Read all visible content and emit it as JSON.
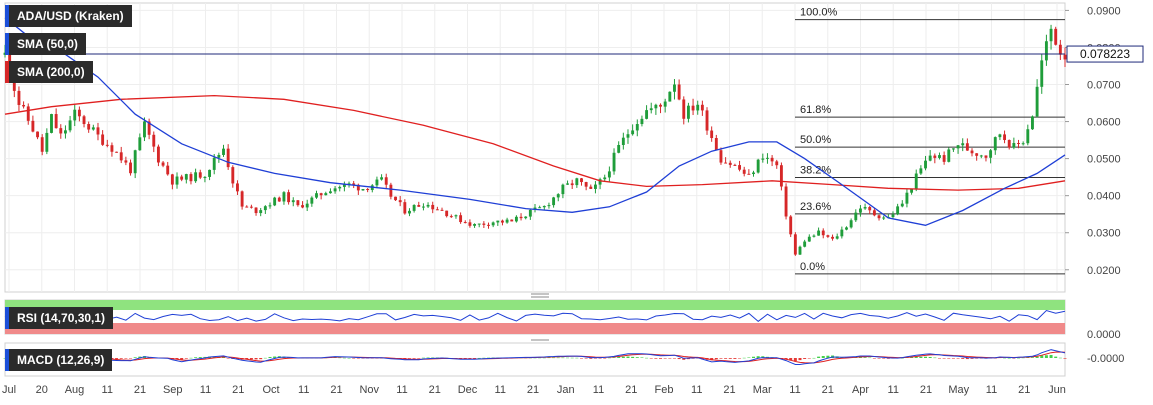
{
  "chart_data": {
    "type": "candlestick",
    "title": "ADA/USD (Kraken)",
    "indicators": {
      "sma50": {
        "label": "SMA (50,0)",
        "color": "#1f3fd6"
      },
      "sma200": {
        "label": "SMA (200,0)",
        "color": "#e02020"
      },
      "rsi": {
        "label": "RSI (14,70,30,1)",
        "color": "#1f3fd6",
        "axis_label": "0.0000"
      },
      "macd": {
        "label": "MACD (12,26,9)",
        "color_macd": "#1f3fd6",
        "color_signal": "#e02020",
        "axis_label": "-0.0000"
      }
    },
    "current_price": {
      "label": "0.078223",
      "value": 0.078223
    },
    "y_axis": {
      "min": 0.014,
      "max": 0.092,
      "ticks": [
        "0.0900",
        "0.0800",
        "0.0700",
        "0.0600",
        "0.0500",
        "0.0400",
        "0.0300",
        "0.0200"
      ]
    },
    "x_axis": {
      "ticks": [
        "Jul",
        "20",
        "Aug",
        "11",
        "21",
        "Sep",
        "11",
        "21",
        "Oct",
        "11",
        "21",
        "Nov",
        "11",
        "21",
        "Dec",
        "11",
        "21",
        "Jan",
        "11",
        "21",
        "Feb",
        "11",
        "21",
        "Mar",
        "11",
        "21",
        "Apr",
        "11",
        "21",
        "May",
        "11",
        "21",
        "Jun"
      ]
    },
    "fibonacci": [
      {
        "label": "100.0%",
        "value": 0.0875
      },
      {
        "label": "61.8%",
        "value": 0.0612
      },
      {
        "label": "50.0%",
        "value": 0.0531
      },
      {
        "label": "38.2%",
        "value": 0.0449
      },
      {
        "label": "23.6%",
        "value": 0.0351
      },
      {
        "label": "0.0%",
        "value": 0.0189
      }
    ],
    "price_path": [
      [
        0,
        0.078
      ],
      [
        3,
        0.065
      ],
      [
        6,
        0.058
      ],
      [
        8,
        0.052
      ],
      [
        10,
        0.061
      ],
      [
        12,
        0.056
      ],
      [
        15,
        0.062
      ],
      [
        17,
        0.06
      ],
      [
        20,
        0.056
      ],
      [
        23,
        0.053
      ],
      [
        25,
        0.05
      ],
      [
        27,
        0.047
      ],
      [
        30,
        0.059
      ],
      [
        33,
        0.05
      ],
      [
        36,
        0.044
      ],
      [
        40,
        0.045
      ],
      [
        43,
        0.046
      ],
      [
        47,
        0.053
      ],
      [
        49,
        0.044
      ],
      [
        51,
        0.037
      ],
      [
        54,
        0.036
      ],
      [
        57,
        0.038
      ],
      [
        60,
        0.04
      ],
      [
        63,
        0.037
      ],
      [
        66,
        0.039
      ],
      [
        70,
        0.042
      ],
      [
        74,
        0.043
      ],
      [
        77,
        0.042
      ],
      [
        81,
        0.044
      ],
      [
        83,
        0.04
      ],
      [
        86,
        0.036
      ],
      [
        90,
        0.038
      ],
      [
        94,
        0.036
      ],
      [
        97,
        0.034
      ],
      [
        101,
        0.032
      ],
      [
        105,
        0.033
      ],
      [
        109,
        0.033
      ],
      [
        112,
        0.035
      ],
      [
        116,
        0.037
      ],
      [
        120,
        0.042
      ],
      [
        123,
        0.044
      ],
      [
        126,
        0.041
      ],
      [
        129,
        0.045
      ],
      [
        132,
        0.053
      ],
      [
        135,
        0.059
      ],
      [
        138,
        0.063
      ],
      [
        141,
        0.064
      ],
      [
        144,
        0.071
      ],
      [
        146,
        0.062
      ],
      [
        149,
        0.065
      ],
      [
        151,
        0.059
      ],
      [
        154,
        0.05
      ],
      [
        157,
        0.048
      ],
      [
        160,
        0.045
      ],
      [
        163,
        0.051
      ],
      [
        166,
        0.048
      ],
      [
        168,
        0.035
      ],
      [
        170,
        0.024
      ],
      [
        172,
        0.028
      ],
      [
        175,
        0.03
      ],
      [
        178,
        0.028
      ],
      [
        181,
        0.032
      ],
      [
        184,
        0.037
      ],
      [
        187,
        0.035
      ],
      [
        190,
        0.034
      ],
      [
        193,
        0.038
      ],
      [
        196,
        0.045
      ],
      [
        199,
        0.051
      ],
      [
        202,
        0.05
      ],
      [
        205,
        0.054
      ],
      [
        208,
        0.052
      ],
      [
        211,
        0.051
      ],
      [
        214,
        0.057
      ],
      [
        217,
        0.053
      ],
      [
        219,
        0.055
      ],
      [
        221,
        0.062
      ],
      [
        223,
        0.076
      ],
      [
        225,
        0.085
      ],
      [
        227,
        0.079
      ],
      [
        228,
        0.0782
      ]
    ],
    "sma50_path": [
      [
        0,
        0.088
      ],
      [
        5,
        0.083
      ],
      [
        12,
        0.079
      ],
      [
        20,
        0.072
      ],
      [
        28,
        0.062
      ],
      [
        38,
        0.054
      ],
      [
        48,
        0.049
      ],
      [
        58,
        0.046
      ],
      [
        70,
        0.0435
      ],
      [
        85,
        0.0415
      ],
      [
        100,
        0.039
      ],
      [
        112,
        0.0365
      ],
      [
        122,
        0.0355
      ],
      [
        130,
        0.037
      ],
      [
        138,
        0.041
      ],
      [
        145,
        0.048
      ],
      [
        152,
        0.052
      ],
      [
        160,
        0.0545
      ],
      [
        166,
        0.0545
      ],
      [
        172,
        0.05
      ],
      [
        180,
        0.043
      ],
      [
        190,
        0.034
      ],
      [
        198,
        0.032
      ],
      [
        206,
        0.036
      ],
      [
        215,
        0.042
      ],
      [
        222,
        0.046
      ],
      [
        228,
        0.051
      ]
    ],
    "sma200_path": [
      [
        0,
        0.062
      ],
      [
        10,
        0.064
      ],
      [
        25,
        0.066
      ],
      [
        45,
        0.067
      ],
      [
        60,
        0.066
      ],
      [
        75,
        0.063
      ],
      [
        90,
        0.059
      ],
      [
        105,
        0.054
      ],
      [
        118,
        0.048
      ],
      [
        128,
        0.044
      ],
      [
        138,
        0.0425
      ],
      [
        150,
        0.043
      ],
      [
        165,
        0.044
      ],
      [
        178,
        0.043
      ],
      [
        190,
        0.042
      ],
      [
        205,
        0.0415
      ],
      [
        218,
        0.042
      ],
      [
        228,
        0.044
      ]
    ]
  }
}
